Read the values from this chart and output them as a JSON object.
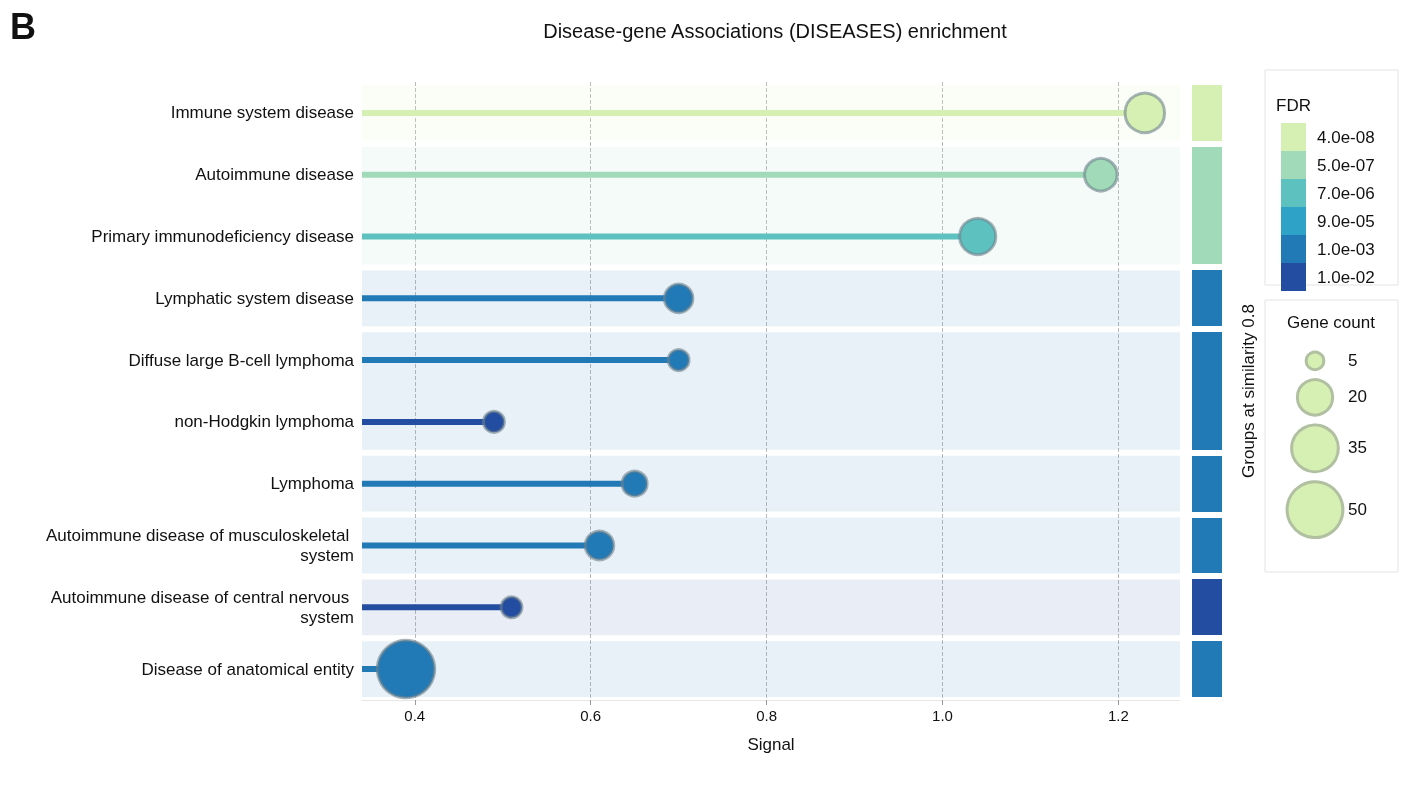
{
  "chart_data": {
    "type": "lollipop",
    "title": "Disease-gene Associations (DISEASES) enrichment",
    "xlabel": "Signal",
    "y2label": "Groups at similarity 0.8",
    "legend_title": "FDR",
    "annotations": [
      "B",
      "Gene count"
    ],
    "categories": [
      "Immune system disease",
      "Autoimmune disease",
      "Primary immunodeficiency disease",
      "Lymphatic system disease",
      "Diffuse large B-cell lymphoma",
      "non-Hodgkin lymphoma",
      "Lymphoma",
      "Autoimmune disease of musculoskeletal system",
      "Autoimmune disease of central nervous system",
      "Disease of anatomical entity"
    ],
    "series": [
      {
        "name": "4.0e-08",
        "color": "#d6efb3",
        "values": [
          1.23,
          null,
          null,
          null,
          null,
          null,
          null,
          null,
          null,
          null
        ],
        "sizes": [
          25,
          null,
          null,
          null,
          null,
          null,
          null,
          null,
          null,
          null
        ]
      },
      {
        "name": "5.0e-07",
        "color": "#a0dab9",
        "values": [
          null,
          1.18,
          null,
          null,
          null,
          null,
          null,
          null,
          null,
          null
        ],
        "sizes": [
          null,
          17,
          null,
          null,
          null,
          null,
          null,
          null,
          null,
          null
        ]
      },
      {
        "name": "7.0e-06",
        "color": "#5dc1c0",
        "values": [
          null,
          null,
          1.04,
          null,
          null,
          null,
          null,
          null,
          null,
          null
        ],
        "sizes": [
          null,
          null,
          21,
          null,
          null,
          null,
          null,
          null,
          null,
          null
        ]
      },
      {
        "name": "9.0e-05",
        "color": "#2ea3c7",
        "values": [
          null,
          null,
          null,
          null,
          null,
          null,
          null,
          null,
          null,
          null
        ],
        "sizes": [
          null,
          null,
          null,
          null,
          null,
          null,
          null,
          null,
          null,
          null
        ]
      },
      {
        "name": "1.0e-03",
        "color": "#2179b5",
        "values": [
          null,
          null,
          null,
          0.7,
          0.7,
          null,
          0.65,
          0.61,
          null,
          0.39
        ],
        "sizes": [
          null,
          null,
          null,
          13,
          7,
          null,
          10,
          13,
          null,
          53
        ]
      },
      {
        "name": "1.0e-02",
        "color": "#234da0",
        "values": [
          null,
          null,
          null,
          null,
          null,
          0.49,
          null,
          null,
          0.51,
          null
        ],
        "sizes": [
          null,
          null,
          null,
          null,
          null,
          7,
          null,
          null,
          7,
          null
        ]
      }
    ],
    "size_legend": [
      5,
      20,
      35,
      50
    ],
    "xlim": [
      0.34,
      1.27
    ],
    "xticks": [
      0.4,
      0.6,
      0.8,
      {
        "value": 1.0,
        "label": "1.0"
      },
      1.2
    ],
    "grid": "x",
    "legend": "right",
    "orientation": "horizontal",
    "marker": "circle",
    "bands": [
      {
        "axis": "y",
        "from": "Immune system disease",
        "to": "Immune system disease",
        "color": "#d6efb3"
      },
      {
        "axis": "y",
        "from": "Autoimmune disease",
        "to": "Primary immunodeficiency disease",
        "color": "#a0dab9"
      },
      {
        "axis": "y",
        "from": "Lymphatic system disease",
        "to": "Lymphatic system disease",
        "color": "#2179b5"
      },
      {
        "axis": "y",
        "from": "Diffuse large B-cell lymphoma",
        "to": "non-Hodgkin lymphoma",
        "color": "#2179b5"
      },
      {
        "axis": "y",
        "from": "Lymphoma",
        "to": "Lymphoma",
        "color": "#2179b5"
      },
      {
        "axis": "y",
        "from": "Autoimmune disease of musculoskeletal system",
        "to": "Autoimmune disease of musculoskeletal system",
        "color": "#2179b5"
      },
      {
        "axis": "y",
        "from": "Autoimmune disease of central nervous system",
        "to": "Autoimmune disease of central nervous system",
        "color": "#234da0"
      },
      {
        "axis": "y",
        "from": "Disease of anatomical entity",
        "to": "Disease of anatomical entity",
        "color": "#2179b5"
      }
    ]
  }
}
